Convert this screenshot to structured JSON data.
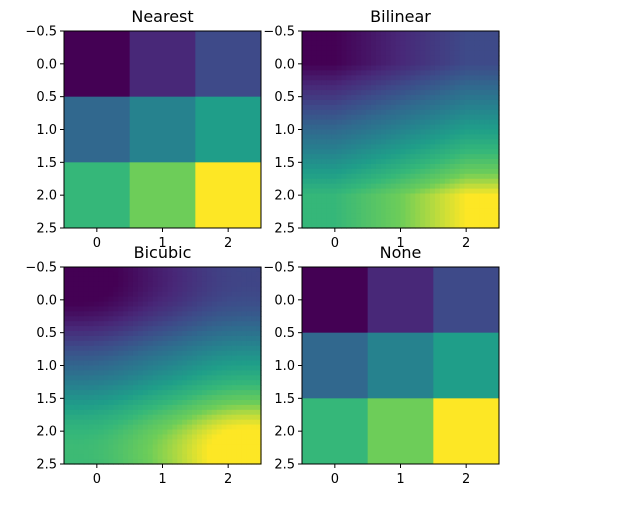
{
  "chart_data": [
    {
      "type": "heatmap",
      "title": "Nearest",
      "interpolation": "nearest",
      "colormap": "viridis",
      "matrix": [
        [
          0.0,
          0.125,
          0.25
        ],
        [
          0.375,
          0.5,
          0.625
        ],
        [
          0.75,
          0.875,
          1.0
        ]
      ],
      "xlim": [
        -0.5,
        2.5
      ],
      "ylim": [
        2.5,
        -0.5
      ],
      "xticks": [
        "0",
        "1",
        "2"
      ],
      "yticks": [
        "−0.5",
        "0.0",
        "0.5",
        "1.0",
        "1.5",
        "2.0",
        "2.5"
      ]
    },
    {
      "type": "heatmap",
      "title": "Bilinear",
      "interpolation": "bilinear",
      "colormap": "viridis",
      "matrix": [
        [
          0.0,
          0.125,
          0.25
        ],
        [
          0.375,
          0.5,
          0.625
        ],
        [
          0.75,
          0.875,
          1.0
        ]
      ],
      "xlim": [
        -0.5,
        2.5
      ],
      "ylim": [
        2.5,
        -0.5
      ],
      "xticks": [
        "0",
        "1",
        "2"
      ],
      "yticks": [
        "−0.5",
        "0.0",
        "0.5",
        "1.0",
        "1.5",
        "2.0",
        "2.5"
      ]
    },
    {
      "type": "heatmap",
      "title": "Bicubic",
      "interpolation": "bicubic",
      "colormap": "viridis",
      "matrix": [
        [
          0.0,
          0.125,
          0.25
        ],
        [
          0.375,
          0.5,
          0.625
        ],
        [
          0.75,
          0.875,
          1.0
        ]
      ],
      "xlim": [
        -0.5,
        2.5
      ],
      "ylim": [
        2.5,
        -0.5
      ],
      "xticks": [
        "0",
        "1",
        "2"
      ],
      "yticks": [
        "−0.5",
        "0.0",
        "0.5",
        "1.0",
        "1.5",
        "2.0",
        "2.5"
      ]
    },
    {
      "type": "heatmap",
      "title": "None",
      "interpolation": "none",
      "colormap": "viridis",
      "matrix": [
        [
          0.0,
          0.125,
          0.25
        ],
        [
          0.375,
          0.5,
          0.625
        ],
        [
          0.75,
          0.875,
          1.0
        ]
      ],
      "xlim": [
        -0.5,
        2.5
      ],
      "ylim": [
        2.5,
        -0.5
      ],
      "xticks": [
        "0",
        "1",
        "2"
      ],
      "yticks": [
        "−0.5",
        "0.0",
        "0.5",
        "1.0",
        "1.5",
        "2.0",
        "2.5"
      ]
    }
  ]
}
